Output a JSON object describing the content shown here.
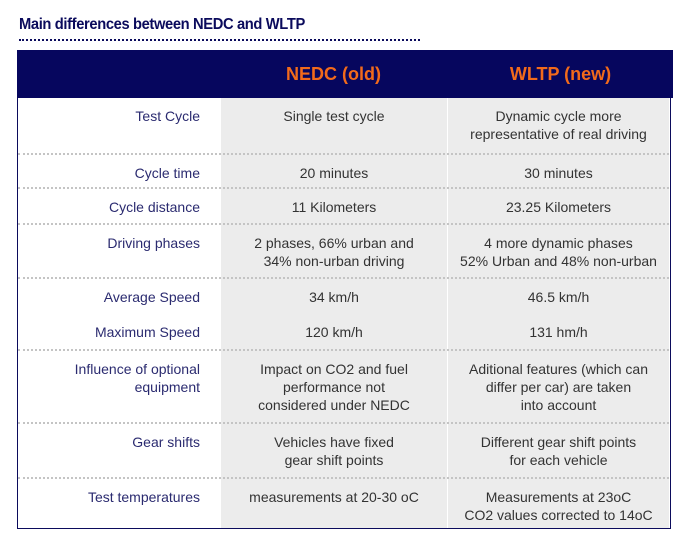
{
  "title": "Main differences between NEDC and WLTP",
  "colors": {
    "header_bg": "#06065e",
    "header_text": "#f26a1b",
    "label_text": "#2b2b70",
    "cell_bg": "#ececec"
  },
  "columns": [
    "",
    "NEDC (old)",
    "WLTP (new)"
  ],
  "rows": [
    {
      "label": "Test Cycle",
      "nedc": "Single test cycle",
      "wltp": "Dynamic cycle more\nrepresentative of real driving"
    },
    {
      "label": "Cycle time",
      "nedc": "20 minutes",
      "wltp": "30 minutes"
    },
    {
      "label": "Cycle distance",
      "nedc": "11 Kilometers",
      "wltp": "23.25 Kilometers"
    },
    {
      "label": "Driving phases",
      "nedc": "2 phases, 66% urban and\n34% non-urban driving",
      "wltp": "4 more dynamic phases\n52% Urban and 48% non-urban"
    },
    {
      "label": "Average Speed",
      "nedc": "34 km/h",
      "wltp": "46.5 km/h"
    },
    {
      "label": "Maximum Speed",
      "nedc": "120 km/h",
      "wltp": "131 hm/h"
    },
    {
      "label": "Influence of optional\nequipment",
      "nedc": "Impact on CO2 and fuel\nperformance not\nconsidered under NEDC",
      "wltp": "Aditional features (which can\ndiffer per car) are taken\ninto account"
    },
    {
      "label": "Gear shifts",
      "nedc": "Vehicles have fixed\ngear shift points",
      "wltp": "Different gear shift points\nfor each vehicle"
    },
    {
      "label": "Test temperatures",
      "nedc": "measurements at 20-30 oC",
      "wltp": "Measurements at 23oC\nCO2 values corrected to 14oC"
    }
  ]
}
